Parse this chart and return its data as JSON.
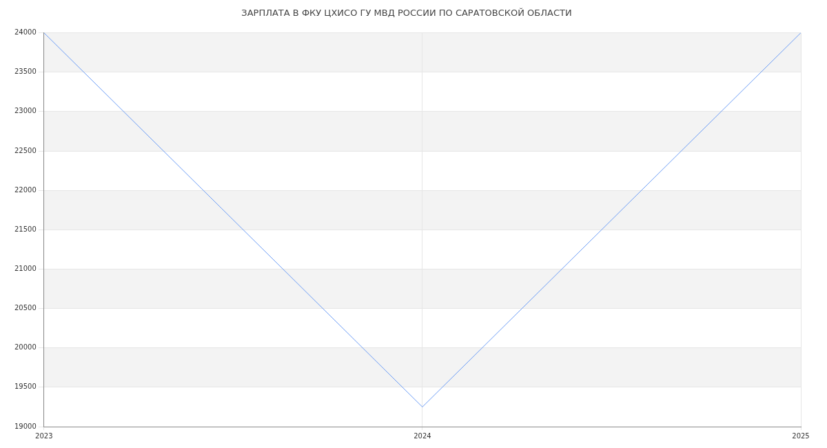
{
  "chart_data": {
    "type": "line",
    "title": "ЗАРПЛАТА В ФКУ ЦХИСО ГУ МВД РОССИИ ПО САРАТОВСКОЙ ОБЛАСТИ",
    "categories": [
      "2023",
      "2024",
      "2025"
    ],
    "series": [
      {
        "color": "#6b9cf5",
        "values": [
          24000,
          19250,
          24000
        ]
      }
    ],
    "ylim": [
      19000,
      24000
    ],
    "yticks": [
      19000,
      19500,
      20000,
      20500,
      21000,
      21500,
      22000,
      22500,
      23000,
      23500,
      24000
    ],
    "grid": true,
    "legend": false,
    "marker": "none",
    "line_style": "solid"
  }
}
